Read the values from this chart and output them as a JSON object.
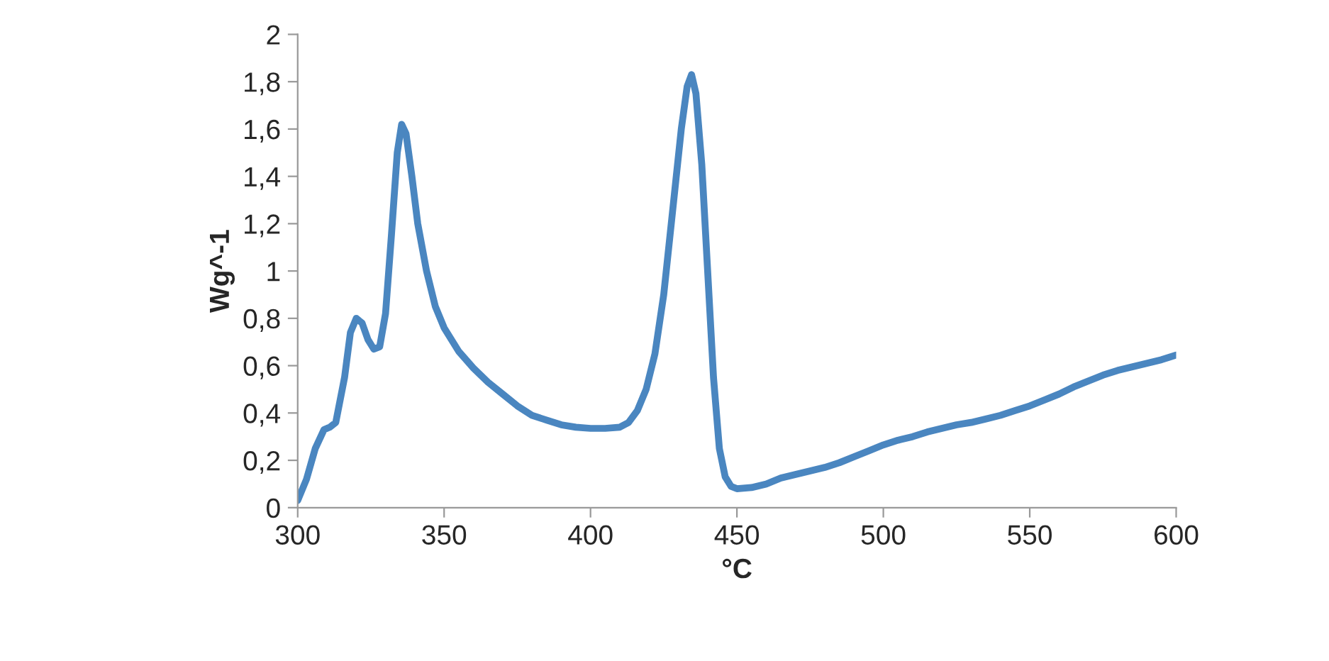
{
  "chart_data": {
    "type": "line",
    "xlabel": "°C",
    "ylabel": "Wg^-1",
    "xlim": [
      300,
      600
    ],
    "xticks": [
      300,
      350,
      400,
      450,
      500,
      550,
      600
    ],
    "ylim": [
      0,
      2
    ],
    "yticks": [
      0,
      {
        "value": 0.2,
        "label": "0,2"
      },
      {
        "value": 0.4,
        "label": "0,4"
      },
      {
        "value": 0.6,
        "label": "0,6"
      },
      {
        "value": 0.8,
        "label": "0,8"
      },
      1,
      {
        "value": 1.2,
        "label": "1,2"
      },
      {
        "value": 1.4,
        "label": "1,4"
      },
      {
        "value": 1.6,
        "label": "1,6"
      },
      {
        "value": 1.8,
        "label": "1,8"
      },
      2
    ],
    "grid": false,
    "marker": "none",
    "line_style": "solid",
    "series": [
      {
        "color": "#4a86c0",
        "x": [
          300,
          303,
          306,
          309,
          311,
          313,
          316,
          318,
          320,
          322,
          324,
          326,
          328,
          330,
          332,
          334,
          335.5,
          337,
          339,
          341,
          344,
          347,
          350,
          355,
          360,
          365,
          370,
          375,
          380,
          385,
          390,
          395,
          400,
          405,
          410,
          413,
          416,
          419,
          422,
          425,
          428,
          431,
          433,
          434.5,
          436,
          438,
          440,
          442,
          444,
          446,
          448,
          450,
          455,
          460,
          465,
          470,
          475,
          480,
          485,
          490,
          495,
          500,
          505,
          510,
          515,
          520,
          525,
          530,
          535,
          540,
          545,
          550,
          555,
          560,
          565,
          570,
          575,
          580,
          585,
          590,
          595,
          600
        ],
        "values": [
          0.03,
          0.12,
          0.25,
          0.33,
          0.34,
          0.36,
          0.55,
          0.74,
          0.8,
          0.78,
          0.71,
          0.67,
          0.68,
          0.82,
          1.15,
          1.5,
          1.62,
          1.58,
          1.4,
          1.2,
          1.0,
          0.85,
          0.76,
          0.66,
          0.59,
          0.53,
          0.48,
          0.43,
          0.39,
          0.37,
          0.35,
          0.34,
          0.335,
          0.335,
          0.34,
          0.36,
          0.41,
          0.5,
          0.65,
          0.9,
          1.25,
          1.6,
          1.78,
          1.83,
          1.75,
          1.45,
          1.0,
          0.55,
          0.25,
          0.13,
          0.09,
          0.08,
          0.085,
          0.1,
          0.125,
          0.14,
          0.155,
          0.17,
          0.19,
          0.215,
          0.24,
          0.265,
          0.285,
          0.3,
          0.32,
          0.335,
          0.35,
          0.36,
          0.375,
          0.39,
          0.41,
          0.43,
          0.455,
          0.48,
          0.51,
          0.535,
          0.56,
          0.58,
          0.595,
          0.61,
          0.625,
          0.645
        ]
      }
    ]
  }
}
